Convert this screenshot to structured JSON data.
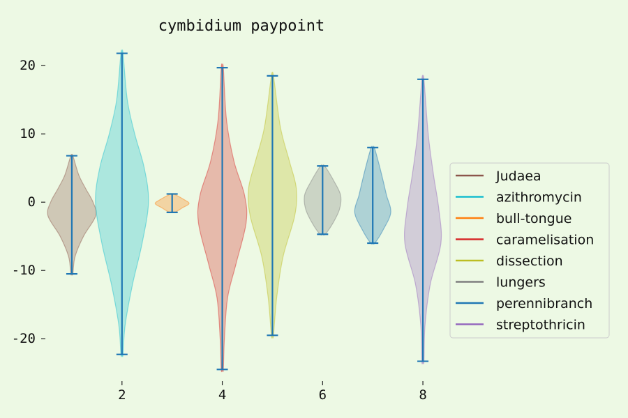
{
  "chart_data": {
    "type": "violin",
    "title": "cymbidium paypoint",
    "xlabel": "",
    "ylabel": "",
    "xlim": [
      0.5,
      8.5
    ],
    "ylim": [
      -26,
      24
    ],
    "xticks": [
      2,
      4,
      6,
      8
    ],
    "yticks": [
      -20,
      -10,
      0,
      10,
      20
    ],
    "grid": false,
    "legend_position": "center-right",
    "legend": [
      {
        "label": "Judaea",
        "color": "#8c564b"
      },
      {
        "label": "azithromycin",
        "color": "#17becf"
      },
      {
        "label": "bull-tongue",
        "color": "#ff7f0e"
      },
      {
        "label": "caramelisation",
        "color": "#d62728"
      },
      {
        "label": "dissection",
        "color": "#bcbd22"
      },
      {
        "label": "lungers",
        "color": "#7f7f7f"
      },
      {
        "label": "perennibranch",
        "color": "#1f77b4"
      },
      {
        "label": "streptothricin",
        "color": "#9467bd"
      }
    ],
    "whisker_color": "#1f77b4",
    "series": [
      {
        "name": "Judaea",
        "x": 1,
        "min": -10.5,
        "max": 6.8,
        "color": "#8c564b",
        "profile": [
          [
            -10.5,
            0.02
          ],
          [
            -8,
            0.06
          ],
          [
            -5,
            0.22
          ],
          [
            -2,
            0.45
          ],
          [
            0,
            0.4
          ],
          [
            2,
            0.26
          ],
          [
            4,
            0.13
          ],
          [
            6.8,
            0.02
          ]
        ]
      },
      {
        "name": "azithromycin",
        "x": 2,
        "min": -22.3,
        "max": 21.8,
        "color": "#17becf",
        "profile": [
          [
            -22.3,
            0.02
          ],
          [
            -18,
            0.06
          ],
          [
            -12,
            0.2
          ],
          [
            -6,
            0.38
          ],
          [
            0,
            0.5
          ],
          [
            5,
            0.42
          ],
          [
            10,
            0.24
          ],
          [
            15,
            0.1
          ],
          [
            21.8,
            0.02
          ]
        ]
      },
      {
        "name": "bull-tongue",
        "x": 3,
        "min": -1.5,
        "max": 1.2,
        "color": "#ff7f0e",
        "profile": [
          [
            -1.5,
            0.05
          ],
          [
            -0.8,
            0.2
          ],
          [
            -0.2,
            0.32
          ],
          [
            0.4,
            0.22
          ],
          [
            1.2,
            0.03
          ]
        ]
      },
      {
        "name": "caramelisation",
        "x": 4,
        "min": -24.5,
        "max": 19.7,
        "color": "#d62728",
        "profile": [
          [
            -24.5,
            0.02
          ],
          [
            -20,
            0.04
          ],
          [
            -14,
            0.1
          ],
          [
            -9,
            0.26
          ],
          [
            -3,
            0.45
          ],
          [
            1,
            0.42
          ],
          [
            6,
            0.22
          ],
          [
            12,
            0.08
          ],
          [
            19.7,
            0.02
          ]
        ]
      },
      {
        "name": "dissection",
        "x": 5,
        "min": -19.5,
        "max": 18.5,
        "color": "#bcbd22",
        "profile": [
          [
            -19.5,
            0.02
          ],
          [
            -14,
            0.08
          ],
          [
            -8,
            0.2
          ],
          [
            -2,
            0.42
          ],
          [
            2,
            0.45
          ],
          [
            6,
            0.32
          ],
          [
            11,
            0.15
          ],
          [
            18.5,
            0.02
          ]
        ]
      },
      {
        "name": "lungers",
        "x": 6,
        "min": -4.7,
        "max": 5.3,
        "color": "#7f7f7f",
        "profile": [
          [
            -4.7,
            0.05
          ],
          [
            -3,
            0.2
          ],
          [
            -1,
            0.32
          ],
          [
            1,
            0.34
          ],
          [
            3,
            0.22
          ],
          [
            5.3,
            0.04
          ]
        ]
      },
      {
        "name": "perennibranch",
        "x": 7,
        "min": -6,
        "max": 8,
        "color": "#1f77b4",
        "profile": [
          [
            -6,
            0.04
          ],
          [
            -4,
            0.2
          ],
          [
            -1.5,
            0.34
          ],
          [
            1,
            0.26
          ],
          [
            3,
            0.2
          ],
          [
            5.5,
            0.12
          ],
          [
            8,
            0.03
          ]
        ]
      },
      {
        "name": "streptothricin",
        "x": 8,
        "min": -23.3,
        "max": 18,
        "color": "#9467bd",
        "profile": [
          [
            -23.3,
            0.02
          ],
          [
            -18,
            0.04
          ],
          [
            -12,
            0.14
          ],
          [
            -6,
            0.34
          ],
          [
            -1,
            0.3
          ],
          [
            4,
            0.2
          ],
          [
            10,
            0.1
          ],
          [
            18,
            0.02
          ]
        ]
      }
    ]
  }
}
